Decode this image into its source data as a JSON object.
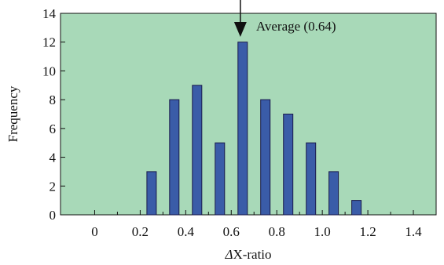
{
  "chart_data": {
    "type": "bar",
    "xlabel_prefix": "Δ",
    "xlabel_rest": "X-ratio",
    "ylabel": "Frequency",
    "x": [
      0.25,
      0.35,
      0.45,
      0.55,
      0.65,
      0.75,
      0.85,
      0.95,
      1.05,
      1.15
    ],
    "values": [
      3,
      8,
      9,
      5,
      12,
      8,
      7,
      5,
      3,
      1
    ],
    "xlim": [
      -0.15,
      1.5
    ],
    "ylim": [
      0,
      14
    ],
    "x_ticks": [
      0,
      0.2,
      0.4,
      0.6,
      0.8,
      1.0,
      1.2,
      1.4
    ],
    "x_tick_labels": [
      "0",
      "0.2",
      "0.4",
      "0.6",
      "0.8",
      "1.0",
      "1.2",
      "1.4"
    ],
    "y_ticks": [
      0,
      2,
      4,
      6,
      8,
      10,
      12,
      14
    ],
    "y_tick_labels": [
      "0",
      "2",
      "4",
      "6",
      "8",
      "10",
      "12",
      "14"
    ],
    "grid": false,
    "annotation": {
      "text": "Average (0.64)",
      "x": 0.64
    },
    "colors": {
      "plot_bg": "#a8d9b8",
      "bar_fill": "#3a5ca8",
      "bar_stroke": "#1a1a4a"
    }
  }
}
